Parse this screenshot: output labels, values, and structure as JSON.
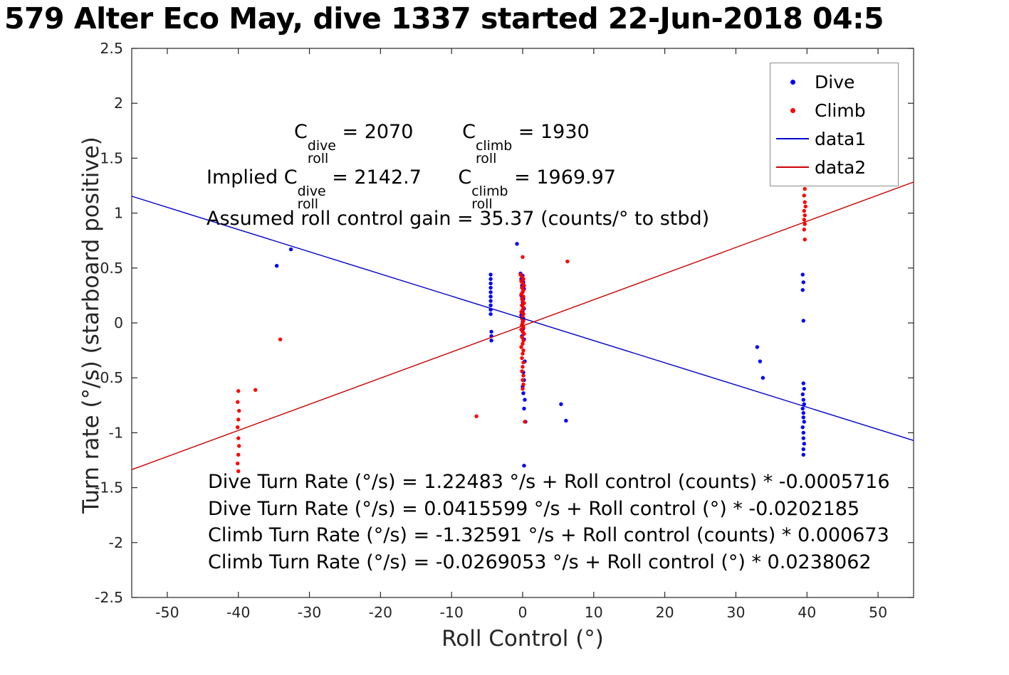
{
  "title": "579 Alter Eco May, dive 1337 started 22-Jun-2018 04:5",
  "chart_data": {
    "type": "scatter",
    "title": "579 Alter Eco May, dive 1337 started 22-Jun-2018 04:5",
    "xlabel": "Roll Control (°)",
    "ylabel": "Turn rate (°/s) (starboard positive)",
    "xlim": [
      -55,
      55
    ],
    "ylim": [
      -2.5,
      2.5
    ],
    "grid": false,
    "x_ticks": [
      -50,
      -40,
      -30,
      -20,
      -10,
      0,
      10,
      20,
      30,
      40,
      50
    ],
    "y_ticks": [
      -2.5,
      -2,
      -1.5,
      -1,
      -0.5,
      0,
      0.5,
      1,
      1.5,
      2,
      2.5
    ],
    "legend": {
      "position": "top-right",
      "entries": [
        {
          "label": "Dive",
          "marker": "dot",
          "color": "#0000ff"
        },
        {
          "label": "Climb",
          "marker": "dot",
          "color": "#ff0000"
        },
        {
          "label": "data1",
          "marker": "line",
          "color": "#0000cc"
        },
        {
          "label": "data2",
          "marker": "line",
          "color": "#cc0000"
        }
      ]
    },
    "series": [
      {
        "name": "Dive",
        "type": "scatter",
        "color": "#0000ff",
        "points": [
          [
            -34.6,
            0.52
          ],
          [
            -32.6,
            0.67
          ],
          [
            -4.5,
            0.44
          ],
          [
            -4.5,
            0.4
          ],
          [
            -4.5,
            0.36
          ],
          [
            -4.5,
            0.32
          ],
          [
            -4.5,
            0.28
          ],
          [
            -4.5,
            0.24
          ],
          [
            -4.5,
            0.2
          ],
          [
            -4.5,
            0.16
          ],
          [
            -4.5,
            0.12
          ],
          [
            -4.5,
            0.08
          ],
          [
            -4.4,
            -0.08
          ],
          [
            -4.4,
            -0.12
          ],
          [
            -4.4,
            -0.16
          ],
          [
            -0.8,
            0.72
          ],
          [
            -0.3,
            0.45
          ],
          [
            0.0,
            0.43
          ],
          [
            -0.2,
            0.4
          ],
          [
            0.1,
            0.37
          ],
          [
            -0.1,
            0.34
          ],
          [
            0.2,
            0.31
          ],
          [
            0.0,
            0.28
          ],
          [
            -0.2,
            0.25
          ],
          [
            0.1,
            0.22
          ],
          [
            0.0,
            0.19
          ],
          [
            -0.1,
            0.16
          ],
          [
            0.2,
            0.13
          ],
          [
            0.0,
            0.1
          ],
          [
            -0.2,
            0.07
          ],
          [
            0.1,
            0.04
          ],
          [
            0.0,
            0.01
          ],
          [
            -0.1,
            -0.02
          ],
          [
            0.1,
            -0.05
          ],
          [
            0.0,
            -0.08
          ],
          [
            -0.1,
            -0.12
          ],
          [
            0.2,
            -0.15
          ],
          [
            0.3,
            -0.35
          ],
          [
            0.1,
            -0.45
          ],
          [
            0.2,
            -0.52
          ],
          [
            0.0,
            -0.58
          ],
          [
            0.1,
            -0.64
          ],
          [
            0.3,
            -0.7
          ],
          [
            0.2,
            -0.78
          ],
          [
            0.4,
            -0.9
          ],
          [
            0.2,
            -1.3
          ],
          [
            5.4,
            -0.74
          ],
          [
            6.1,
            -0.89
          ],
          [
            33.0,
            -0.22
          ],
          [
            33.4,
            -0.35
          ],
          [
            33.8,
            -0.5
          ],
          [
            39.4,
            0.44
          ],
          [
            39.5,
            0.37
          ],
          [
            39.4,
            0.3
          ],
          [
            39.5,
            0.02
          ],
          [
            39.5,
            -0.55
          ],
          [
            39.6,
            -0.6
          ],
          [
            39.4,
            -0.65
          ],
          [
            39.5,
            -0.7
          ],
          [
            39.6,
            -0.74
          ],
          [
            39.4,
            -0.78
          ],
          [
            39.5,
            -0.82
          ],
          [
            39.5,
            -0.86
          ],
          [
            39.6,
            -0.9
          ],
          [
            39.4,
            -0.95
          ],
          [
            39.5,
            -1.0
          ],
          [
            39.5,
            -1.05
          ],
          [
            39.6,
            -1.1
          ],
          [
            39.5,
            -1.15
          ],
          [
            39.5,
            -1.2
          ]
        ]
      },
      {
        "name": "Climb",
        "type": "scatter",
        "color": "#ff0000",
        "points": [
          [
            -40.0,
            -0.62
          ],
          [
            -37.6,
            -0.61
          ],
          [
            -40.1,
            -0.72
          ],
          [
            -39.9,
            -0.8
          ],
          [
            -40.0,
            -0.88
          ],
          [
            -40.1,
            -0.95
          ],
          [
            -40.0,
            -1.05
          ],
          [
            -39.9,
            -1.12
          ],
          [
            -40.0,
            -1.2
          ],
          [
            -40.1,
            -1.28
          ],
          [
            -40.0,
            -1.35
          ],
          [
            -34.1,
            -0.15
          ],
          [
            -6.5,
            -0.85
          ],
          [
            0.0,
            0.6
          ],
          [
            -0.3,
            0.44
          ],
          [
            -0.1,
            0.42
          ],
          [
            0.1,
            0.4
          ],
          [
            -0.2,
            0.38
          ],
          [
            0.0,
            0.36
          ],
          [
            0.2,
            0.34
          ],
          [
            -0.1,
            0.32
          ],
          [
            0.1,
            0.3
          ],
          [
            0.0,
            0.28
          ],
          [
            -0.2,
            0.26
          ],
          [
            0.1,
            0.24
          ],
          [
            -0.1,
            0.22
          ],
          [
            0.0,
            0.2
          ],
          [
            0.2,
            0.18
          ],
          [
            -0.1,
            0.16
          ],
          [
            0.1,
            0.14
          ],
          [
            0.0,
            0.12
          ],
          [
            -0.2,
            0.1
          ],
          [
            0.1,
            0.08
          ],
          [
            0.0,
            0.06
          ],
          [
            -0.1,
            0.04
          ],
          [
            0.1,
            0.02
          ],
          [
            0.0,
            0.0
          ],
          [
            -0.1,
            -0.02
          ],
          [
            0.1,
            -0.04
          ],
          [
            -0.2,
            -0.06
          ],
          [
            0.0,
            -0.08
          ],
          [
            0.2,
            -0.1
          ],
          [
            -0.1,
            -0.13
          ],
          [
            0.1,
            -0.16
          ],
          [
            0.0,
            -0.19
          ],
          [
            -0.2,
            -0.22
          ],
          [
            0.1,
            -0.25
          ],
          [
            0.0,
            -0.28
          ],
          [
            -0.1,
            -0.32
          ],
          [
            0.1,
            -0.36
          ],
          [
            0.0,
            -0.4
          ],
          [
            -0.1,
            -0.44
          ],
          [
            0.1,
            -0.48
          ],
          [
            0.0,
            -0.52
          ],
          [
            0.1,
            -0.56
          ],
          [
            0.0,
            -0.6
          ],
          [
            0.3,
            -0.9
          ],
          [
            6.3,
            0.56
          ],
          [
            39.6,
            1.3
          ],
          [
            39.7,
            1.22
          ],
          [
            39.6,
            1.16
          ],
          [
            39.7,
            1.1
          ],
          [
            39.8,
            1.06
          ],
          [
            39.6,
            1.02
          ],
          [
            39.7,
            0.98
          ],
          [
            39.6,
            0.94
          ],
          [
            39.7,
            0.9
          ],
          [
            39.6,
            0.85
          ],
          [
            39.7,
            0.76
          ]
        ]
      },
      {
        "name": "data1",
        "type": "line",
        "color": "#0000cc",
        "intercept": 0.0415599,
        "slope": -0.0202185
      },
      {
        "name": "data2",
        "type": "line",
        "color": "#cc0000",
        "intercept": -0.0269053,
        "slope": 0.0238062
      }
    ],
    "annotations": {
      "coeff_line": [
        {
          "t": "C"
        },
        {
          "sup": "dive",
          "sub": "roll"
        },
        {
          "t": " = 2070        "
        },
        {
          "t": "C"
        },
        {
          "sup": "climb",
          "sub": "roll"
        },
        {
          "t": " = 1930"
        }
      ],
      "implied_line": [
        {
          "t": "Implied C"
        },
        {
          "sup": "dive",
          "sub": "roll"
        },
        {
          "t": " = 2142.7      "
        },
        {
          "t": "C"
        },
        {
          "sup": "climb",
          "sub": "roll"
        },
        {
          "t": " = 1969.97"
        }
      ],
      "gain_line": "Assumed roll control gain = 35.37 (counts/° to stbd)",
      "equations": [
        "Dive Turn Rate (°/s) = 1.22483 °/s + Roll control (counts) * -0.0005716",
        "Dive Turn Rate (°/s) = 0.0415599 °/s + Roll control (°) * -0.0202185",
        "Climb Turn Rate (°/s) = -1.32591 °/s + Roll control (counts) * 0.000673",
        "Climb Turn Rate (°/s) = -0.0269053 °/s + Roll control (°) * 0.0238062"
      ]
    }
  }
}
